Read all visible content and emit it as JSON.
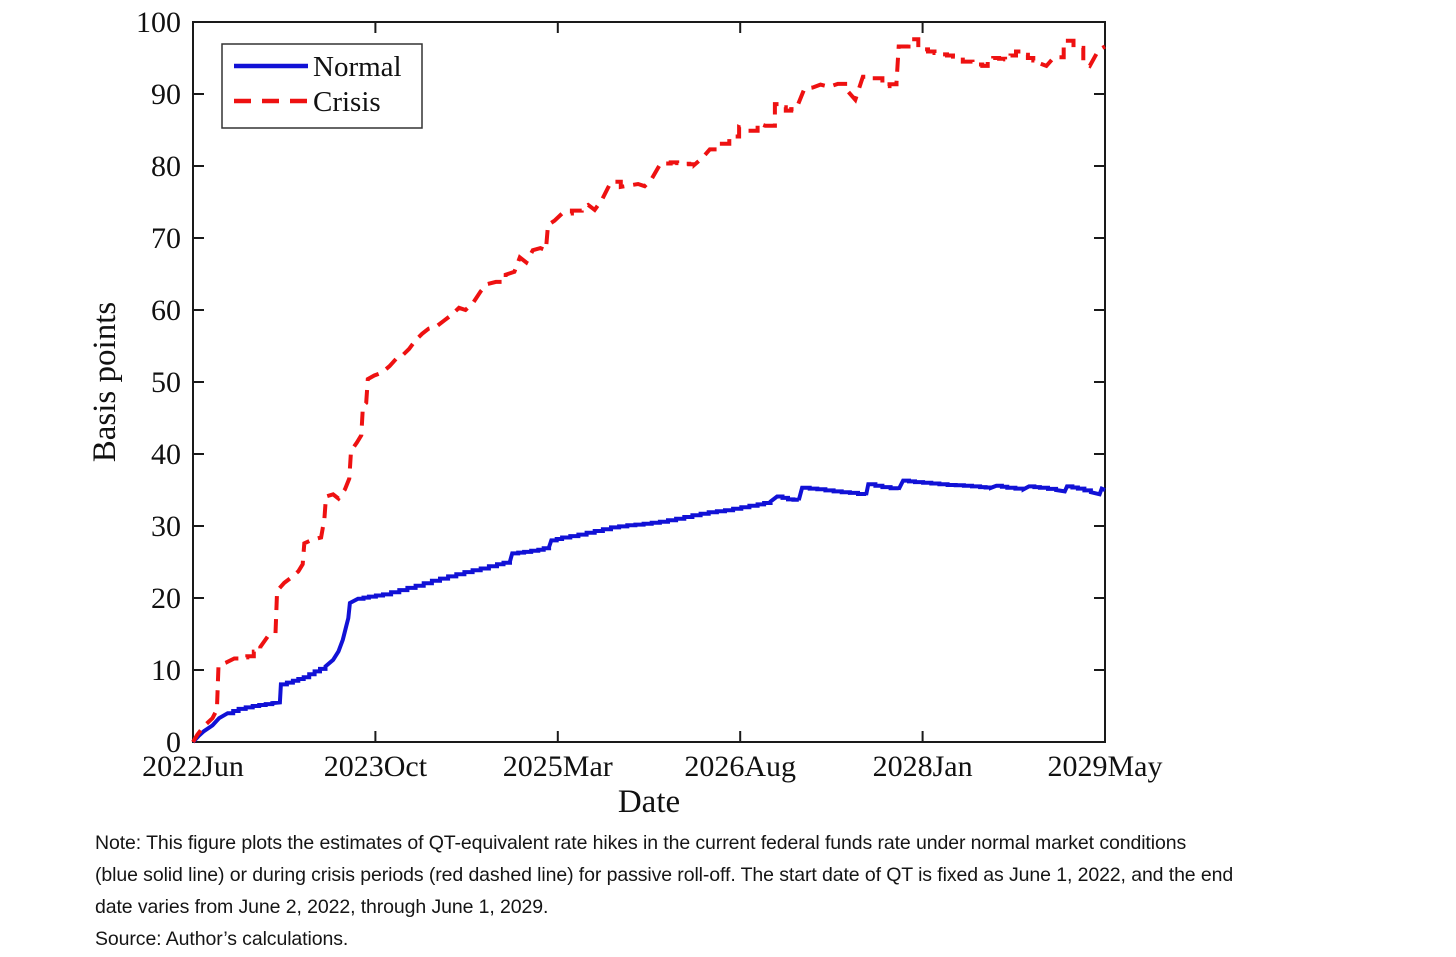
{
  "note": {
    "lines": [
      "Note:  This figure plots the estimates of QT-equivalent rate hikes in the current federal funds rate under normal market conditions",
      "(blue solid line) or during crisis periods (red dashed line) for passive roll-off. The start date of QT is fixed as June 1, 2022, and the end",
      "date varies from June 2, 2022, through June 1, 2029."
    ],
    "source": "Source: Author’s calculations."
  },
  "chart_data": {
    "type": "line",
    "title": "",
    "xlabel": "Date",
    "ylabel": "Basis points",
    "x_axis": {
      "tick_labels": [
        "2022Jun",
        "2023Oct",
        "2025Mar",
        "2026Aug",
        "2028Jan",
        "2029May"
      ],
      "range_months": [
        0,
        84
      ],
      "start_date": "June 1, 2022",
      "end_date": "June 1, 2029"
    },
    "y_axis": {
      "ticks": [
        0,
        10,
        20,
        30,
        40,
        50,
        60,
        70,
        80,
        90,
        100
      ],
      "range": [
        0,
        100
      ]
    },
    "legend": {
      "position": "top-left",
      "items": [
        {
          "label": "Normal",
          "color": "#1111d6",
          "style": "solid"
        },
        {
          "label": "Crisis",
          "color": "#ee1111",
          "style": "dashed"
        }
      ]
    },
    "axis_color": "#1a1a1a",
    "series": [
      {
        "name": "Normal",
        "color": "#1111d6",
        "style": "solid",
        "points_month_bp": [
          [
            0,
            0
          ],
          [
            0.5,
            0.8
          ],
          [
            1,
            1.5
          ],
          [
            1.8,
            2.3
          ],
          [
            2.4,
            3.3
          ],
          [
            3.2,
            4.0
          ],
          [
            4.2,
            4.6
          ],
          [
            5.5,
            5.0
          ],
          [
            7.3,
            5.4
          ],
          [
            8.0,
            5.5
          ],
          [
            8.1,
            8.0
          ],
          [
            9.2,
            8.5
          ],
          [
            10.2,
            9.0
          ],
          [
            11.2,
            9.8
          ],
          [
            12.2,
            10.5
          ],
          [
            12.9,
            11.4
          ],
          [
            13.4,
            12.6
          ],
          [
            13.8,
            14.2
          ],
          [
            14.1,
            16.0
          ],
          [
            14.3,
            17.2
          ],
          [
            14.45,
            19.3
          ],
          [
            15.2,
            19.9
          ],
          [
            16.2,
            20.2
          ],
          [
            17.5,
            20.5
          ],
          [
            19,
            21.1
          ],
          [
            20.5,
            21.7
          ],
          [
            22,
            22.4
          ],
          [
            23.5,
            23.0
          ],
          [
            25,
            23.6
          ],
          [
            26.5,
            24.1
          ],
          [
            28,
            24.7
          ],
          [
            29.2,
            25.1
          ],
          [
            29.4,
            26.2
          ],
          [
            30.5,
            26.4
          ],
          [
            31.8,
            26.7
          ],
          [
            32.8,
            27.1
          ],
          [
            33.0,
            28.0
          ],
          [
            34,
            28.4
          ],
          [
            35.5,
            28.8
          ],
          [
            37,
            29.3
          ],
          [
            38.5,
            29.8
          ],
          [
            40,
            30.1
          ],
          [
            41.5,
            30.3
          ],
          [
            43,
            30.6
          ],
          [
            44.5,
            31.0
          ],
          [
            46,
            31.5
          ],
          [
            47.5,
            31.9
          ],
          [
            49,
            32.2
          ],
          [
            50.5,
            32.6
          ],
          [
            52,
            33.0
          ],
          [
            53.2,
            33.4
          ],
          [
            53.8,
            34.1
          ],
          [
            54.8,
            33.7
          ],
          [
            55.8,
            33.6
          ],
          [
            56.1,
            35.3
          ],
          [
            57.5,
            35.1
          ],
          [
            59,
            34.8
          ],
          [
            60.5,
            34.6
          ],
          [
            62,
            34.3
          ],
          [
            62.2,
            35.8
          ],
          [
            63.5,
            35.4
          ],
          [
            65,
            35.1
          ],
          [
            65.4,
            36.3
          ],
          [
            66.5,
            36.1
          ],
          [
            68,
            35.9
          ],
          [
            69.5,
            35.7
          ],
          [
            71,
            35.6
          ],
          [
            72.5,
            35.4
          ],
          [
            73.5,
            35.3
          ],
          [
            74,
            35.6
          ],
          [
            75,
            35.3
          ],
          [
            76.5,
            35.1
          ],
          [
            77,
            35.5
          ],
          [
            78,
            35.3
          ],
          [
            79.5,
            35.0
          ],
          [
            80.3,
            34.8
          ],
          [
            80.5,
            35.5
          ],
          [
            81.5,
            35.2
          ],
          [
            82.7,
            34.7
          ],
          [
            83.5,
            34.4
          ],
          [
            83.7,
            35.2
          ],
          [
            84,
            35.0
          ]
        ]
      },
      {
        "name": "Crisis",
        "color": "#ee1111",
        "style": "dashed",
        "points_month_bp": [
          [
            0,
            0
          ],
          [
            0.4,
            1.0
          ],
          [
            1.0,
            2.2
          ],
          [
            1.8,
            3.3
          ],
          [
            2.2,
            4.5
          ],
          [
            2.35,
            10.6
          ],
          [
            3.0,
            11.0
          ],
          [
            3.8,
            11.6
          ],
          [
            5,
            11.9
          ],
          [
            6.2,
            13.2
          ],
          [
            6.9,
            14.7
          ],
          [
            7.6,
            15.1
          ],
          [
            7.75,
            21.0
          ],
          [
            8.4,
            22.1
          ],
          [
            9.1,
            22.9
          ],
          [
            9.7,
            23.7
          ],
          [
            10.1,
            24.7
          ],
          [
            10.25,
            27.6
          ],
          [
            11,
            28.1
          ],
          [
            11.8,
            28.4
          ],
          [
            12.1,
            31.0
          ],
          [
            12.25,
            34.1
          ],
          [
            12.9,
            34.4
          ],
          [
            13.4,
            33.8
          ],
          [
            14,
            35.1
          ],
          [
            14.4,
            36.6
          ],
          [
            14.55,
            40.4
          ],
          [
            15.1,
            41.6
          ],
          [
            15.5,
            42.6
          ],
          [
            15.65,
            46.6
          ],
          [
            15.95,
            47.1
          ],
          [
            16.1,
            50.4
          ],
          [
            16.7,
            50.9
          ],
          [
            17.4,
            51.3
          ],
          [
            18.1,
            52.2
          ],
          [
            18.7,
            53.2
          ],
          [
            19.3,
            53.7
          ],
          [
            19.9,
            54.6
          ],
          [
            20.5,
            55.8
          ],
          [
            21.1,
            56.7
          ],
          [
            21.7,
            57.4
          ],
          [
            22.4,
            57.7
          ],
          [
            23.1,
            58.5
          ],
          [
            23.8,
            59.3
          ],
          [
            24.5,
            60.3
          ],
          [
            25.1,
            60.0
          ],
          [
            25.8,
            61.0
          ],
          [
            26.5,
            62.6
          ],
          [
            27.1,
            63.6
          ],
          [
            27.9,
            63.9
          ],
          [
            28.8,
            64.9
          ],
          [
            29.6,
            65.3
          ],
          [
            30.1,
            67.3
          ],
          [
            30.7,
            66.6
          ],
          [
            31.3,
            68.3
          ],
          [
            32.0,
            68.6
          ],
          [
            32.5,
            68.3
          ],
          [
            32.7,
            71.8
          ],
          [
            33.3,
            72.4
          ],
          [
            34.0,
            73.4
          ],
          [
            34.9,
            73.8
          ],
          [
            35.8,
            74.2
          ],
          [
            36.4,
            74.6
          ],
          [
            37.0,
            73.9
          ],
          [
            37.7,
            75.4
          ],
          [
            38.5,
            77.8
          ],
          [
            39.4,
            77.1
          ],
          [
            40.2,
            77.3
          ],
          [
            41.0,
            77.5
          ],
          [
            41.6,
            77.2
          ],
          [
            42.2,
            78.1
          ],
          [
            43.0,
            80.2
          ],
          [
            44.0,
            80.5
          ],
          [
            45.2,
            80.3
          ],
          [
            46.2,
            80.2
          ],
          [
            46.9,
            81.1
          ],
          [
            47.6,
            82.3
          ],
          [
            48.5,
            83.1
          ],
          [
            49.4,
            84.1
          ],
          [
            50.3,
            85.4
          ],
          [
            51.1,
            84.9
          ],
          [
            52.0,
            86.0
          ],
          [
            52.7,
            85.6
          ],
          [
            53.6,
            88.6
          ],
          [
            54.6,
            87.7
          ],
          [
            55.6,
            88.1
          ],
          [
            56.3,
            90.7
          ],
          [
            57.1,
            90.9
          ],
          [
            57.8,
            91.3
          ],
          [
            58.6,
            91.0
          ],
          [
            59.4,
            91.4
          ],
          [
            60.3,
            90.4
          ],
          [
            61.0,
            89.2
          ],
          [
            61.7,
            92.4
          ],
          [
            62.6,
            92.2
          ],
          [
            63.5,
            91.1
          ],
          [
            64.8,
            91.6
          ],
          [
            65.0,
            96.6
          ],
          [
            65.9,
            97.6
          ],
          [
            66.8,
            96.2
          ],
          [
            67.7,
            95.9
          ],
          [
            68.9,
            95.5
          ],
          [
            70.0,
            95.2
          ],
          [
            70.9,
            94.5
          ],
          [
            71.8,
            94.1
          ],
          [
            72.7,
            93.9
          ],
          [
            73.7,
            95.0
          ],
          [
            74.8,
            94.8
          ],
          [
            75.8,
            95.9
          ],
          [
            76.9,
            95.0
          ],
          [
            77.9,
            94.3
          ],
          [
            78.6,
            93.9
          ],
          [
            79.3,
            95.1
          ],
          [
            80.2,
            97.4
          ],
          [
            81.1,
            96.4
          ],
          [
            82.0,
            94.4
          ],
          [
            82.6,
            93.9
          ],
          [
            83.4,
            96.1
          ],
          [
            84,
            96.6
          ]
        ]
      }
    ]
  }
}
